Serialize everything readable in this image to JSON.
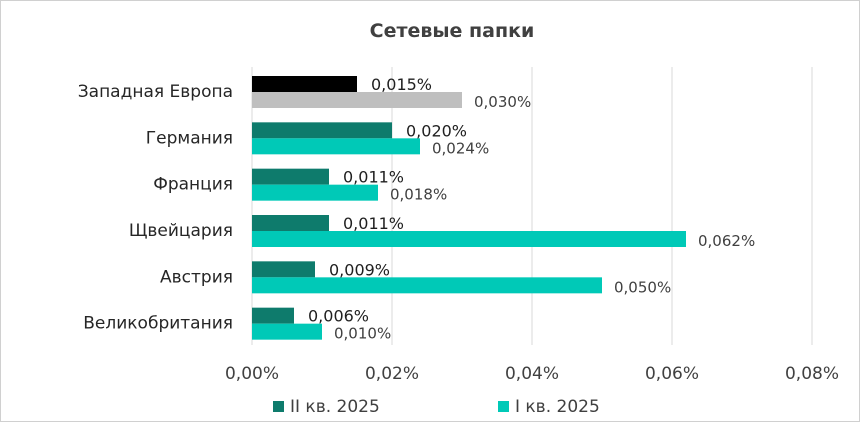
{
  "chart_data": {
    "type": "bar",
    "orientation": "horizontal",
    "title": "Сетевые папки",
    "categories": [
      "Западная Европа",
      "Германия",
      "Франция",
      "Щвейцария",
      "Австрия",
      "Великобритания"
    ],
    "series": [
      {
        "name": "II кв. 2025",
        "values": [
          0.015,
          0.02,
          0.011,
          0.011,
          0.009,
          0.006
        ],
        "labels": [
          "0,015%",
          "0,020%",
          "0,011%",
          "0,011%",
          "0,009%",
          "0,006%"
        ],
        "color": "#0e7b6c",
        "highlight_first_color": "#000000"
      },
      {
        "name": "I кв. 2025",
        "values": [
          0.03,
          0.024,
          0.018,
          0.062,
          0.05,
          0.01
        ],
        "labels": [
          "0,030%",
          "0,024%",
          "0,018%",
          "0,062%",
          "0,050%",
          "0,010%"
        ],
        "color": "#00c9b7",
        "highlight_first_color": "#bfbfbf"
      }
    ],
    "xlim": [
      0,
      0.08
    ],
    "xticks": [
      0,
      0.02,
      0.04,
      0.06,
      0.08
    ],
    "xtick_labels": [
      "0,00%",
      "0,02%",
      "0,04%",
      "0,06%",
      "0,08%"
    ],
    "grid": "vertical",
    "legend": "bottom",
    "units": "%"
  }
}
